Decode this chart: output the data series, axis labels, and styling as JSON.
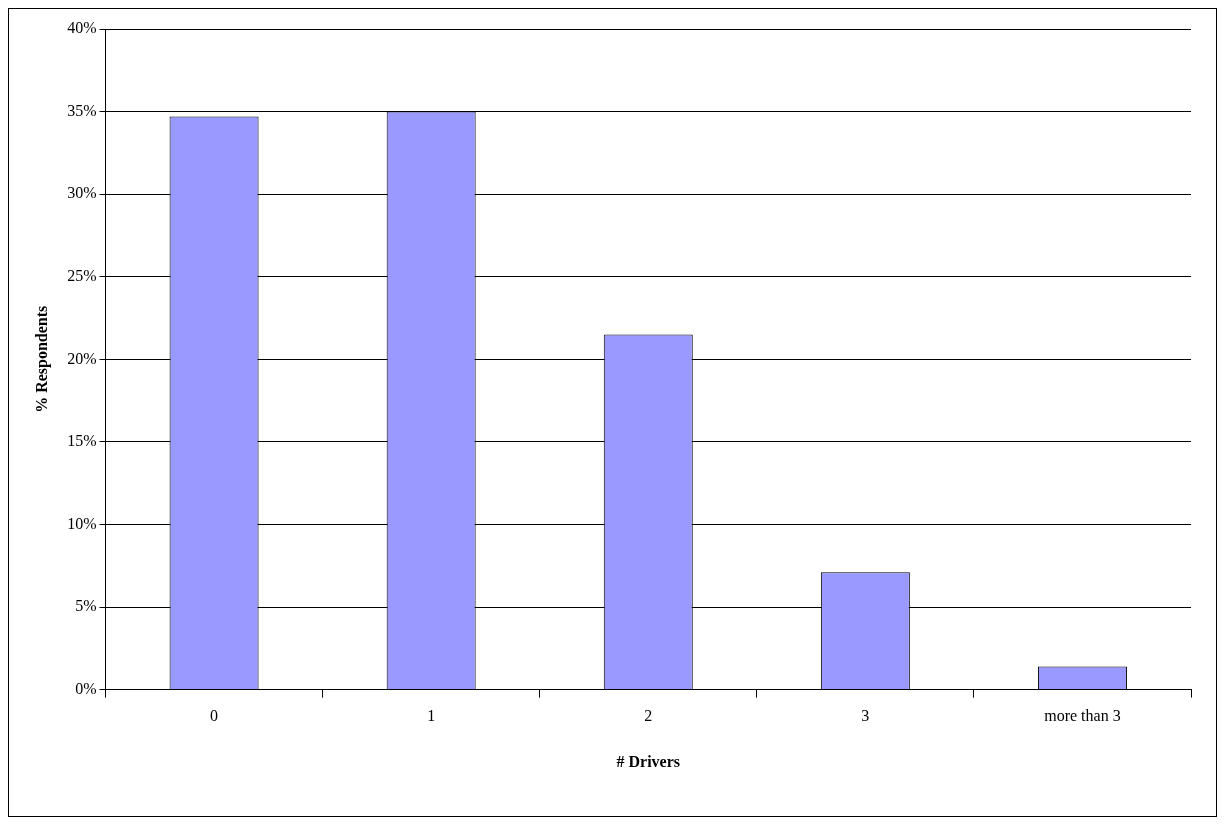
{
  "chart_data": {
    "type": "bar",
    "xlabel": "# Drivers",
    "ylabel": "% Respondents",
    "categories": [
      "0",
      "1",
      "2",
      "3",
      "more than 3"
    ],
    "values": [
      34.7,
      35,
      21.5,
      7.1,
      1.4
    ],
    "color": "#9999ff",
    "ylim": [
      0,
      40
    ],
    "yticks": [
      {
        "value": 0,
        "label": "0%"
      },
      {
        "value": 5,
        "label": "5%"
      },
      {
        "value": 10,
        "label": "10%"
      },
      {
        "value": 15,
        "label": "15%"
      },
      {
        "value": 20,
        "label": "20%"
      },
      {
        "value": 25,
        "label": "25%"
      },
      {
        "value": 30,
        "label": "30%"
      },
      {
        "value": 35,
        "label": "35%"
      },
      {
        "value": 40,
        "label": "40%"
      }
    ],
    "grid": "y",
    "legend": false
  }
}
